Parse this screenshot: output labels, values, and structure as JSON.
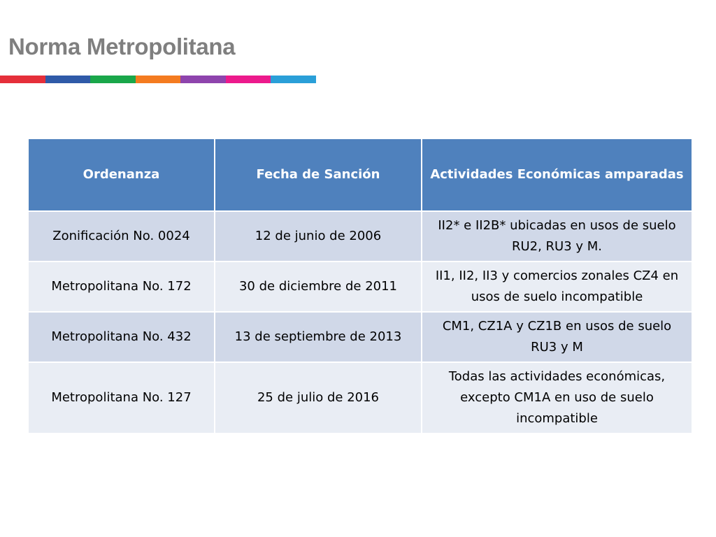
{
  "title": "Norma Metropolitana",
  "color_bar": [
    "#e52f3a",
    "#2f5aa8",
    "#1aa74a",
    "#f47b20",
    "#8e44ad",
    "#ec1a8c",
    "#2a9fd8"
  ],
  "table": {
    "headers": [
      "Ordenanza",
      "Fecha de Sanción",
      "Actividades Económicas amparadas"
    ],
    "rows": [
      [
        "Zonificación No. 0024",
        "12 de junio de 2006",
        "II2* e II2B*  ubicadas en usos de suelo RU2, RU3 y M."
      ],
      [
        "Metropolitana No. 172",
        "30 de diciembre de 2011",
        "II1, II2, II3 y comercios zonales CZ4 en usos de suelo incompatible"
      ],
      [
        "Metropolitana No. 432",
        "13 de septiembre de 2013",
        "CM1, CZ1A y CZ1B en usos de suelo RU3 y M"
      ],
      [
        "Metropolitana No. 127",
        "25 de julio de 2016",
        "Todas las actividades económicas, excepto CM1A en uso de suelo incompatible"
      ]
    ]
  }
}
